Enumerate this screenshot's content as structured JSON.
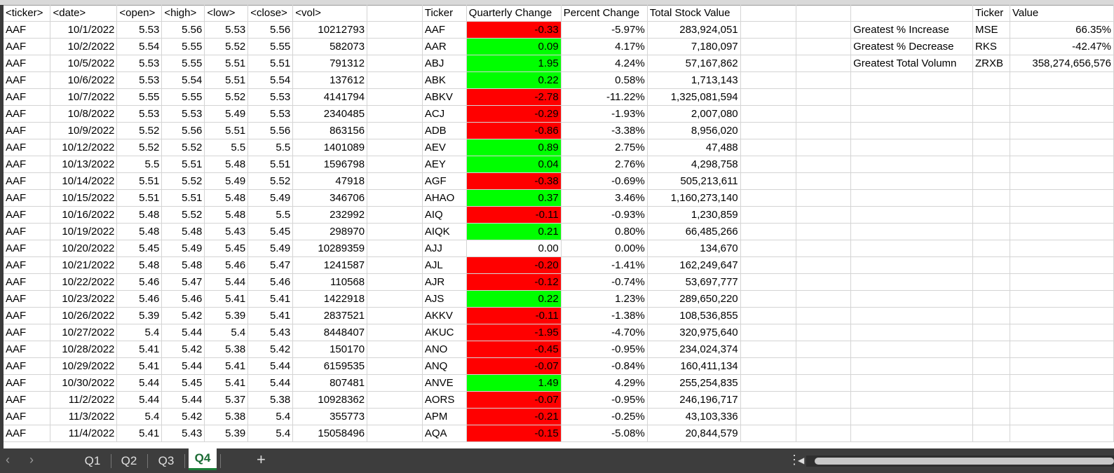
{
  "raw_headers": [
    "<ticker>",
    "<date>",
    "<open>",
    "<high>",
    "<low>",
    "<close>",
    "<vol>"
  ],
  "raw_rows": [
    [
      "AAF",
      "10/1/2022",
      "5.53",
      "5.56",
      "5.53",
      "5.56",
      "10212793"
    ],
    [
      "AAF",
      "10/2/2022",
      "5.54",
      "5.55",
      "5.52",
      "5.55",
      "582073"
    ],
    [
      "AAF",
      "10/5/2022",
      "5.53",
      "5.55",
      "5.51",
      "5.51",
      "791312"
    ],
    [
      "AAF",
      "10/6/2022",
      "5.53",
      "5.54",
      "5.51",
      "5.54",
      "137612"
    ],
    [
      "AAF",
      "10/7/2022",
      "5.55",
      "5.55",
      "5.52",
      "5.53",
      "4141794"
    ],
    [
      "AAF",
      "10/8/2022",
      "5.53",
      "5.53",
      "5.49",
      "5.53",
      "2340485"
    ],
    [
      "AAF",
      "10/9/2022",
      "5.52",
      "5.56",
      "5.51",
      "5.56",
      "863156"
    ],
    [
      "AAF",
      "10/12/2022",
      "5.52",
      "5.52",
      "5.5",
      "5.5",
      "1401089"
    ],
    [
      "AAF",
      "10/13/2022",
      "5.5",
      "5.51",
      "5.48",
      "5.51",
      "1596798"
    ],
    [
      "AAF",
      "10/14/2022",
      "5.51",
      "5.52",
      "5.49",
      "5.52",
      "47918"
    ],
    [
      "AAF",
      "10/15/2022",
      "5.51",
      "5.51",
      "5.48",
      "5.49",
      "346706"
    ],
    [
      "AAF",
      "10/16/2022",
      "5.48",
      "5.52",
      "5.48",
      "5.5",
      "232992"
    ],
    [
      "AAF",
      "10/19/2022",
      "5.48",
      "5.48",
      "5.43",
      "5.45",
      "298970"
    ],
    [
      "AAF",
      "10/20/2022",
      "5.45",
      "5.49",
      "5.45",
      "5.49",
      "10289359"
    ],
    [
      "AAF",
      "10/21/2022",
      "5.48",
      "5.48",
      "5.46",
      "5.47",
      "1241587"
    ],
    [
      "AAF",
      "10/22/2022",
      "5.46",
      "5.47",
      "5.44",
      "5.46",
      "110568"
    ],
    [
      "AAF",
      "10/23/2022",
      "5.46",
      "5.46",
      "5.41",
      "5.41",
      "1422918"
    ],
    [
      "AAF",
      "10/26/2022",
      "5.39",
      "5.42",
      "5.39",
      "5.41",
      "2837521"
    ],
    [
      "AAF",
      "10/27/2022",
      "5.4",
      "5.44",
      "5.4",
      "5.43",
      "8448407"
    ],
    [
      "AAF",
      "10/28/2022",
      "5.41",
      "5.42",
      "5.38",
      "5.42",
      "150170"
    ],
    [
      "AAF",
      "10/29/2022",
      "5.41",
      "5.44",
      "5.41",
      "5.44",
      "6159535"
    ],
    [
      "AAF",
      "10/30/2022",
      "5.44",
      "5.45",
      "5.41",
      "5.44",
      "807481"
    ],
    [
      "AAF",
      "11/2/2022",
      "5.44",
      "5.44",
      "5.37",
      "5.38",
      "10928362"
    ],
    [
      "AAF",
      "11/3/2022",
      "5.4",
      "5.42",
      "5.38",
      "5.4",
      "355773"
    ],
    [
      "AAF",
      "11/4/2022",
      "5.41",
      "5.43",
      "5.39",
      "5.4",
      "15058496"
    ]
  ],
  "summary_headers": [
    "Ticker",
    "Quarterly Change",
    "Percent Change",
    "Total Stock Value"
  ],
  "summary_rows": [
    [
      "AAF",
      "-0.33",
      "-5.97%",
      "283,924,051"
    ],
    [
      "AAR",
      "0.09",
      "4.17%",
      "7,180,097"
    ],
    [
      "ABJ",
      "1.95",
      "4.24%",
      "57,167,862"
    ],
    [
      "ABK",
      "0.22",
      "0.58%",
      "1,713,143"
    ],
    [
      "ABKV",
      "-2.78",
      "-11.22%",
      "1,325,081,594"
    ],
    [
      "ACJ",
      "-0.29",
      "-1.93%",
      "2,007,080"
    ],
    [
      "ADB",
      "-0.86",
      "-3.38%",
      "8,956,020"
    ],
    [
      "AEV",
      "0.89",
      "2.75%",
      "47,488"
    ],
    [
      "AEY",
      "0.04",
      "2.76%",
      "4,298,758"
    ],
    [
      "AGF",
      "-0.38",
      "-0.69%",
      "505,213,611"
    ],
    [
      "AHAO",
      "0.37",
      "3.46%",
      "1,160,273,140"
    ],
    [
      "AIQ",
      "-0.11",
      "-0.93%",
      "1,230,859"
    ],
    [
      "AIQK",
      "0.21",
      "0.80%",
      "66,485,266"
    ],
    [
      "AJJ",
      "0.00",
      "0.00%",
      "134,670"
    ],
    [
      "AJL",
      "-0.20",
      "-1.41%",
      "162,249,647"
    ],
    [
      "AJR",
      "-0.12",
      "-0.74%",
      "53,697,777"
    ],
    [
      "AJS",
      "0.22",
      "1.23%",
      "289,650,220"
    ],
    [
      "AKKV",
      "-0.11",
      "-1.38%",
      "108,536,855"
    ],
    [
      "AKUC",
      "-1.95",
      "-4.70%",
      "320,975,640"
    ],
    [
      "ANO",
      "-0.45",
      "-0.95%",
      "234,024,374"
    ],
    [
      "ANQ",
      "-0.07",
      "-0.84%",
      "160,411,134"
    ],
    [
      "ANVE",
      "1.49",
      "4.29%",
      "255,254,835"
    ],
    [
      "AORS",
      "-0.07",
      "-0.95%",
      "246,196,717"
    ],
    [
      "APM",
      "-0.21",
      "-0.25%",
      "43,103,336"
    ],
    [
      "AQA",
      "-0.15",
      "-5.08%",
      "20,844,579"
    ]
  ],
  "stats": {
    "header_ticker": "Ticker",
    "header_value": "Value",
    "rows": [
      {
        "label": "Greatest % Increase",
        "ticker": "MSE",
        "value": "66.35%"
      },
      {
        "label": "Greatest % Decrease",
        "ticker": "RKS",
        "value": "-42.47%"
      },
      {
        "label": "Greatest Total Volumn",
        "ticker": "ZRXB",
        "value": "358,274,656,576"
      }
    ]
  },
  "tabs": {
    "items": [
      "Q1",
      "Q2",
      "Q3",
      "Q4"
    ],
    "active": "Q4",
    "add_icon": "+",
    "more_icon": "⋮",
    "prev_icon": "‹",
    "next_icon": "›"
  },
  "colors": {
    "positive_fill": "#00ff00",
    "negative_fill": "#ff0000",
    "tab_bar": "#3d3d3d",
    "active_tab_accent": "#1a7f37"
  }
}
